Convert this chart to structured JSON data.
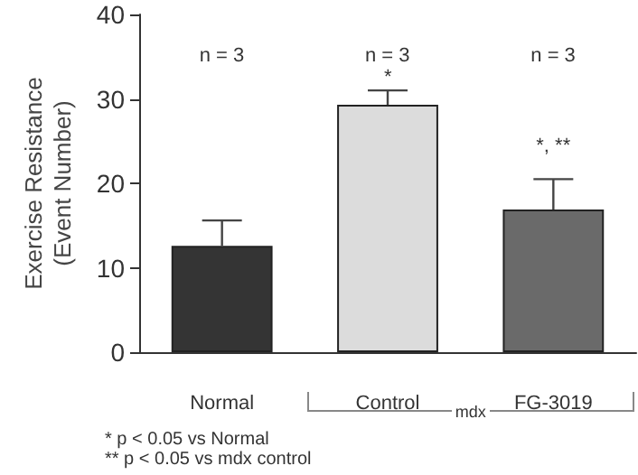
{
  "chart_data": {
    "type": "bar",
    "ylabel": "Exercise Resistance\n(Event Number)",
    "categories": [
      "Normal",
      "Control",
      "FG-3019"
    ],
    "values": [
      12.6,
      29.3,
      16.9
    ],
    "colors": [
      "#343434",
      "#dcdcdc",
      "#6a6a6a"
    ],
    "errors": [
      [
        12.6,
        15.6
      ],
      [
        29.3,
        31.0
      ],
      [
        16.9,
        20.5
      ]
    ],
    "ylim": [
      0,
      40
    ],
    "yticks": [
      0,
      10,
      20,
      30,
      40
    ],
    "grid": false,
    "annotations": [
      "n = 3",
      "n = 3",
      "n = 3",
      "*",
      "*, **",
      "mdx",
      "* p < 0.05 vs Normal",
      "** p < 0.05 vs mdx control"
    ]
  }
}
